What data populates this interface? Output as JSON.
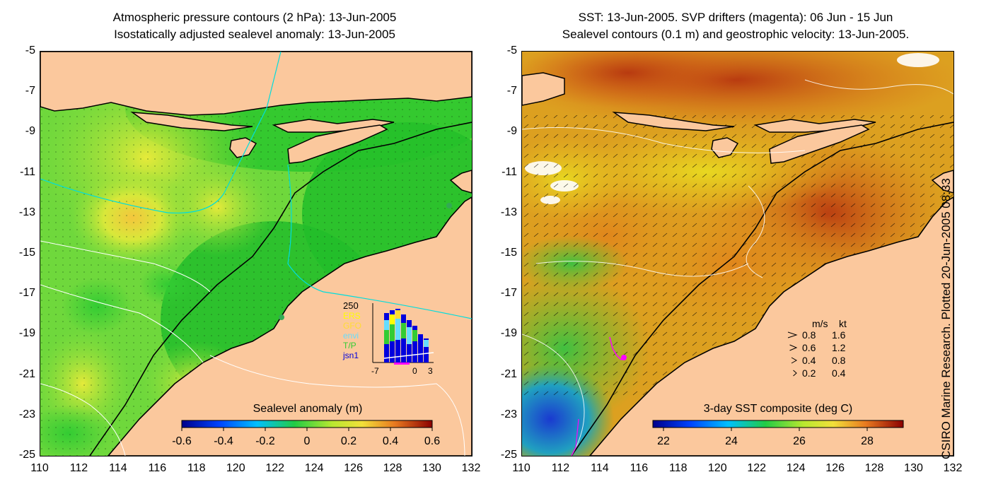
{
  "left_panel": {
    "title_line1": "Atmospheric pressure contours (2 hPa): 13-Jun-2005",
    "title_line2": "Isostatically adjusted sealevel anomaly: 13-Jun-2005",
    "colorbar_label": "Sealevel anomaly (m)",
    "colorbar_ticks": [
      "-0.6",
      "-0.4",
      "-0.2",
      "0",
      "0.2",
      "0.4",
      "0.6"
    ],
    "inset": {
      "y_top_label": "250",
      "legend": [
        {
          "label": "ERS",
          "color": "#ffff00"
        },
        {
          "label": "GFO",
          "color": "#ffdd33"
        },
        {
          "label": "envi",
          "color": "#66ddff"
        },
        {
          "label": "T/P",
          "color": "#33cc33"
        },
        {
          "label": "jsn1",
          "color": "#0000dd"
        }
      ],
      "x_labels": [
        "-7",
        "0",
        "3"
      ]
    }
  },
  "right_panel": {
    "title_line1": "SST: 13-Jun-2005. SVP drifters (magenta): 06 Jun - 15 Jun",
    "title_line2": "Sealevel contours (0.1 m) and geostrophic velocity: 13-Jun-2005.",
    "colorbar_label": "3-day SST composite (deg C)",
    "colorbar_ticks": [
      "22",
      "24",
      "26",
      "28"
    ],
    "velocity_legend": {
      "header_ms": "m/s",
      "header_kt": "kt",
      "rows": [
        {
          "ms": "0.8",
          "kt": "1.6"
        },
        {
          "ms": "0.6",
          "kt": "1.2"
        },
        {
          "ms": "0.4",
          "kt": "0.8"
        },
        {
          "ms": "0.2",
          "kt": "0.4"
        }
      ]
    }
  },
  "axes": {
    "y_ticks": [
      "-5",
      "-7",
      "-9",
      "-11",
      "-13",
      "-15",
      "-17",
      "-19",
      "-21",
      "-23",
      "-25"
    ],
    "x_ticks": [
      "110",
      "112",
      "114",
      "116",
      "118",
      "120",
      "122",
      "124",
      "126",
      "128",
      "130",
      "132"
    ]
  },
  "credit": "CSIRO Marine Research. Plotted 20-Jun-2005 08:33",
  "colors": {
    "land": "#fbc89d",
    "coast": "#000000",
    "drifter": "#ff00ff",
    "contour_pressure": "#00dddd",
    "contour_sealevel": "#ffffff"
  }
}
